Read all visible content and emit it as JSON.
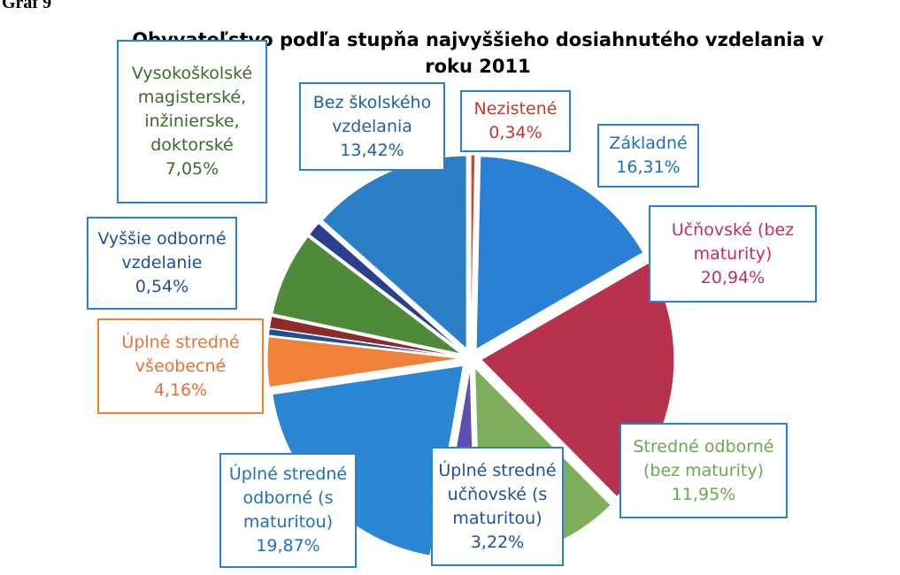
{
  "caption": "Graf 9",
  "chart_data": {
    "type": "pie",
    "title": "Obyvateľstvo podľa stupňa najvyššieho dosiahnutého vzdelania v roku 2011",
    "categories": [
      "Nezistené",
      "Základné",
      "Učňovské (bez maturity)",
      "Stredné odborné (bez maturity)",
      "Úplné stredné učňovské (s maturitou)",
      "Úplné stredné odborné (s maturitou)",
      "Úplné stredné všeobecné",
      "Vyššie odborné vzdelanie",
      null,
      "Vysokoškolské magisterské, inžinierske, doktorské",
      null,
      "Bez školského vzdelania"
    ],
    "values": [
      0.34,
      16.31,
      20.94,
      11.95,
      3.22,
      19.87,
      4.16,
      0.54,
      1.0,
      7.05,
      1.2,
      13.42
    ],
    "value_labels": [
      "0,34%",
      "16,31%",
      "20,94%",
      "11,95%",
      "3,22%",
      "19,87%",
      "4,16%",
      "0,54%",
      null,
      "7,05%",
      null,
      "13,42%"
    ],
    "colors": [
      "#d2452a",
      "#2a7fd6",
      "#b8324e",
      "#7fae5a",
      "#5b4fb0",
      "#2a86d2",
      "#f0813a",
      "#1f4f8f",
      "#8b2a2a",
      "#4f8a3a",
      "#2b3f8a",
      "#2a7fc6"
    ]
  }
}
